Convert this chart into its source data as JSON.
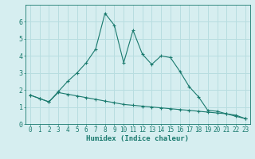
{
  "xlabel": "Humidex (Indice chaleur)",
  "background_color": "#d6eef0",
  "grid_color": "#b8dde0",
  "line_color": "#1a7a6e",
  "x": [
    0,
    1,
    2,
    3,
    4,
    5,
    6,
    7,
    8,
    9,
    10,
    11,
    12,
    13,
    14,
    15,
    16,
    17,
    18,
    19,
    20,
    21,
    22,
    23
  ],
  "line2": [
    1.7,
    1.5,
    1.3,
    1.9,
    2.5,
    3.0,
    3.6,
    4.4,
    6.5,
    5.8,
    3.6,
    5.5,
    4.1,
    3.5,
    4.0,
    3.9,
    3.1,
    2.2,
    1.6,
    0.8,
    0.75,
    0.6,
    0.45,
    0.32
  ],
  "line3": [
    1.7,
    1.5,
    1.3,
    1.85,
    1.75,
    1.65,
    1.55,
    1.45,
    1.35,
    1.25,
    1.15,
    1.1,
    1.05,
    1.0,
    0.95,
    0.9,
    0.85,
    0.8,
    0.75,
    0.7,
    0.65,
    0.6,
    0.52,
    0.32
  ],
  "ylim": [
    0,
    7
  ],
  "xlim": [
    -0.5,
    23.5
  ],
  "yticks": [
    0,
    1,
    2,
    3,
    4,
    5,
    6
  ],
  "xticks": [
    0,
    1,
    2,
    3,
    4,
    5,
    6,
    7,
    8,
    9,
    10,
    11,
    12,
    13,
    14,
    15,
    16,
    17,
    18,
    19,
    20,
    21,
    22,
    23
  ],
  "tick_fontsize": 5.5,
  "xlabel_fontsize": 6.5
}
